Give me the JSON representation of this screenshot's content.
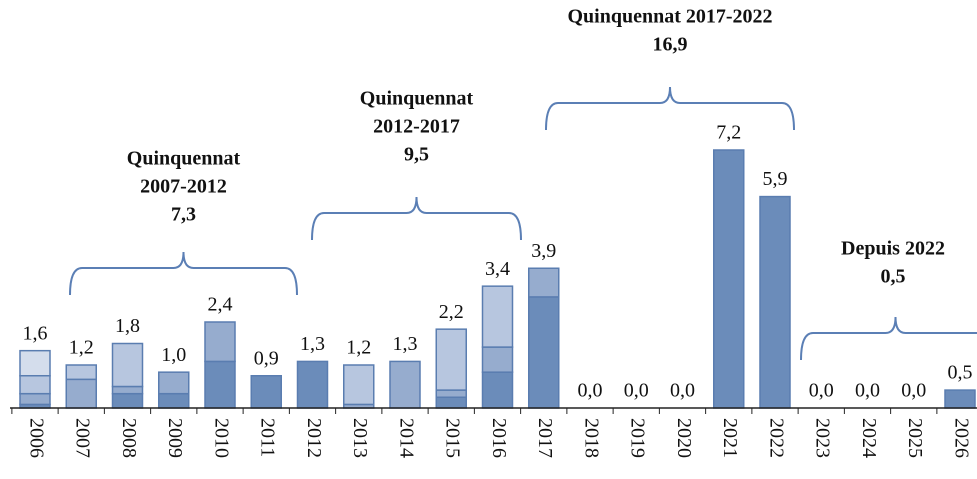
{
  "chart_data": {
    "type": "stacked_bar",
    "categories": [
      "2006",
      "2007",
      "2008",
      "2009",
      "2010",
      "2011",
      "2012",
      "2013",
      "2014",
      "2015",
      "2016",
      "2017",
      "2018",
      "2019",
      "2020",
      "2021",
      "2022",
      "2023",
      "2024",
      "2025",
      "2026"
    ],
    "series": [
      {
        "color": "#6b8cba",
        "values": [
          0.1,
          0,
          0.4,
          0.4,
          1.3,
          0.9,
          1.3,
          0,
          0,
          0.3,
          1.0,
          3.1,
          0,
          0,
          0,
          7.2,
          5.9,
          0,
          0,
          0,
          0.5
        ]
      },
      {
        "color": "#96acce",
        "values": [
          0.3,
          0.8,
          0.2,
          0.6,
          1.1,
          0,
          0,
          0.1,
          1.3,
          0.2,
          0.7,
          0.8,
          0,
          0,
          0,
          0,
          0,
          0,
          0,
          0,
          0
        ]
      },
      {
        "color": "#b7c6df",
        "values": [
          0.5,
          0.4,
          1.2,
          0,
          0,
          0,
          0,
          1.1,
          0,
          1.7,
          1.7,
          0,
          0,
          0,
          0,
          0,
          0,
          0,
          0,
          0,
          0
        ]
      },
      {
        "color": "#d4ddec",
        "values": [
          0.7,
          0,
          0,
          0,
          0,
          0,
          0,
          0,
          0,
          0,
          0,
          0,
          0,
          0,
          0,
          0,
          0,
          0,
          0,
          0,
          0
        ]
      }
    ],
    "totals": [
      1.6,
      1.2,
      1.8,
      1.0,
      2.4,
      0.9,
      1.3,
      1.2,
      1.3,
      2.2,
      3.4,
      3.9,
      0,
      0,
      0,
      7.2,
      5.9,
      0,
      0,
      0,
      0.5
    ],
    "value_labels": [
      "1,6",
      "1,2",
      "1,8",
      "1,0",
      "2,4",
      "0,9",
      "1,3",
      "1,2",
      "1,3",
      "2,2",
      "3,4",
      "3,9",
      "0,0",
      "0,0",
      "0,0",
      "7,2",
      "5,9",
      "0,0",
      "0,0",
      "0,0",
      "0,5"
    ],
    "ylim": [
      0,
      8
    ],
    "annotations": [
      {
        "lines": [
          "Quinquennat",
          "2007-2012"
        ],
        "total": "7,3"
      },
      {
        "lines": [
          "Quinquennat",
          "2012-2017"
        ],
        "total": "9,5"
      },
      {
        "lines": [
          "Quinquennat 2017-2022"
        ],
        "total": "16,9"
      },
      {
        "lines": [
          "Depuis 2022"
        ],
        "total": "0,5"
      }
    ]
  }
}
